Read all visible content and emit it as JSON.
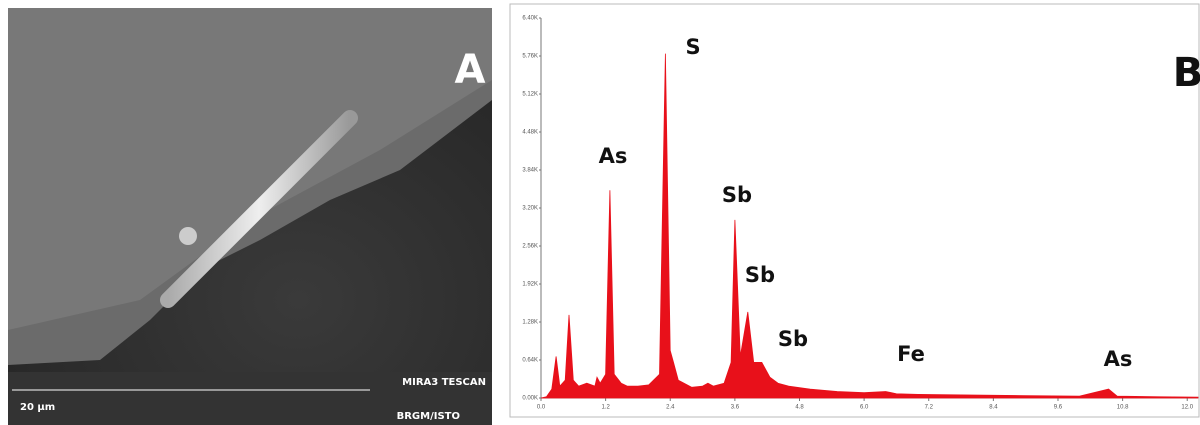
{
  "panel_a": {
    "label": "A",
    "scale": "20 µm",
    "instrument": "MIRA3 TESCAN",
    "lab": "BRGM/ISTO"
  },
  "chart_data": {
    "type": "area",
    "panel_label": "B",
    "x": [
      0.0,
      0.1,
      0.2,
      0.28,
      0.35,
      0.45,
      0.52,
      0.6,
      0.7,
      0.85,
      1.0,
      1.04,
      1.1,
      1.2,
      1.28,
      1.36,
      1.49,
      1.6,
      1.8,
      2.0,
      2.2,
      2.31,
      2.4,
      2.46,
      2.55,
      2.8,
      3.0,
      3.1,
      3.2,
      3.4,
      3.53,
      3.6,
      3.7,
      3.84,
      3.95,
      4.1,
      4.25,
      4.4,
      4.6,
      5.0,
      5.5,
      6.0,
      6.4,
      6.6,
      7.0,
      8.0,
      9.0,
      10.0,
      10.54,
      10.7,
      11.5,
      12.2
    ],
    "series": [
      {
        "name": "spectrum",
        "color": "#e8101a",
        "values": [
          0,
          20,
          150,
          700,
          200,
          300,
          1400,
          300,
          200,
          250,
          200,
          350,
          250,
          400,
          3500,
          400,
          250,
          200,
          200,
          220,
          400,
          5800,
          800,
          600,
          300,
          180,
          200,
          250,
          200,
          250,
          600,
          3000,
          700,
          1450,
          600,
          600,
          350,
          250,
          200,
          150,
          110,
          90,
          110,
          70,
          60,
          50,
          40,
          30,
          150,
          30,
          20,
          15
        ]
      }
    ],
    "xlim": [
      0,
      12.2
    ],
    "xticks": [
      {
        "value": 0,
        "label": "0.0"
      },
      1.2,
      2.4,
      3.6,
      4.8,
      {
        "value": 6,
        "label": "6.0"
      },
      7.2,
      8.4,
      9.6,
      10.8,
      {
        "value": 12,
        "label": "12.0"
      }
    ],
    "ylim": [
      0,
      6400
    ],
    "yticks": [
      {
        "value": 0,
        "label": "0.00K"
      },
      {
        "value": 640,
        "label": "0.64K"
      },
      {
        "value": 1280,
        "label": "1.28K"
      },
      {
        "value": 1920,
        "label": "1.92K"
      },
      {
        "value": 2560,
        "label": "2.56K"
      },
      {
        "value": 3200,
        "label": "3.20K"
      },
      {
        "value": 3840,
        "label": "3.84K"
      },
      {
        "value": 4480,
        "label": "4.48K"
      },
      {
        "value": 5120,
        "label": "5.12K"
      },
      {
        "value": 5760,
        "label": "5.76K"
      },
      {
        "value": 6400,
        "label": "6.40K"
      }
    ],
    "annotations": [
      "S",
      "As",
      "Sb",
      "Sb",
      "Sb",
      "Fe",
      "As"
    ]
  }
}
